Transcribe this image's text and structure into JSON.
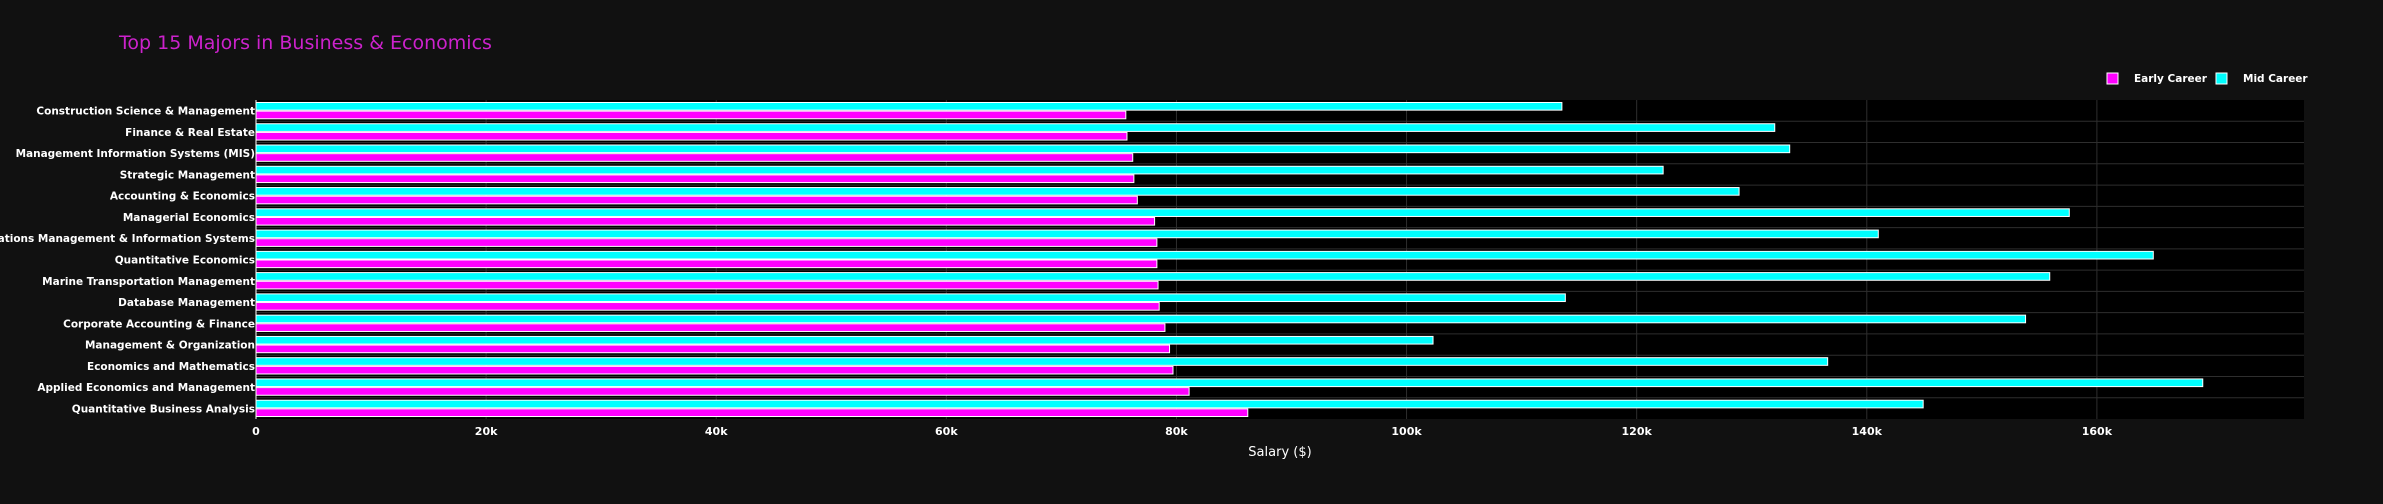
{
  "chart_data": {
    "type": "bar",
    "orientation": "horizontal",
    "title": "Top 15 Majors in Business & Economics",
    "xlabel": "Salary ($)",
    "ylabel": "",
    "xlim": [
      0,
      178000
    ],
    "x_ticks": [
      0,
      20000,
      40000,
      60000,
      80000,
      100000,
      120000,
      140000,
      160000
    ],
    "x_tick_labels": [
      "0",
      "20k",
      "40k",
      "60k",
      "80k",
      "100k",
      "120k",
      "140k",
      "160k"
    ],
    "grid": true,
    "legend_position": "top-right",
    "categories": [
      "Construction Science & Management",
      "Finance & Real Estate",
      "Management Information Systems (MIS)",
      "Strategic Management",
      "Accounting & Economics",
      "Managerial Economics",
      "Operations Management & Information Systems",
      "Quantitative Economics",
      "Marine Transportation Management",
      "Database Management",
      "Corporate Accounting & Finance",
      "Management & Organization",
      "Economics and Mathematics",
      "Applied Economics and Management",
      "Quantitative Business Analysis"
    ],
    "series": [
      {
        "name": "Early Career",
        "color": "#ff00ff",
        "values": [
          75600,
          75700,
          76200,
          76300,
          76600,
          78100,
          78300,
          78300,
          78400,
          78500,
          79000,
          79400,
          79700,
          81100,
          86200
        ]
      },
      {
        "name": "Mid Career",
        "color": "#00ffff",
        "values": [
          113500,
          132000,
          133300,
          122300,
          128900,
          157600,
          141000,
          164900,
          155900,
          113800,
          153800,
          102300,
          136600,
          169200,
          144900
        ]
      }
    ]
  },
  "colors": {
    "background": "#111111",
    "plot_background": "#000000",
    "title": "#cc22cc",
    "grid": "#2e2e2e",
    "bar_outline": "#ffffff"
  }
}
